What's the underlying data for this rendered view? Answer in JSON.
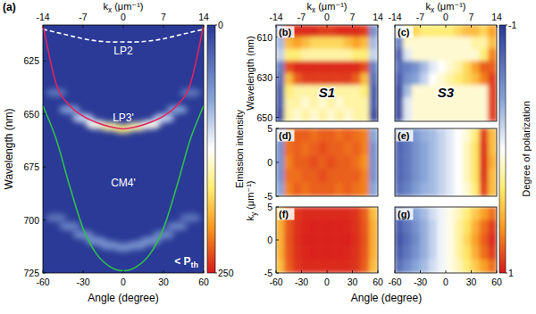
{
  "chart_data": [
    {
      "type": "line",
      "title": "(a)",
      "xlabel": "Angle (degree)",
      "ylabel": "Wavelength (nm)",
      "x2label": "kx (μm⁻¹)",
      "xlim": [
        -60,
        60
      ],
      "xticks": [
        -60,
        -30,
        0,
        30,
        60
      ],
      "x2lim": [
        -14,
        14
      ],
      "x2ticks": [
        -14,
        -7,
        0,
        7,
        14
      ],
      "ylim": [
        608,
        725
      ],
      "yticks": [
        625,
        650,
        675,
        700,
        725
      ],
      "x": [
        -60,
        -50,
        -40,
        -30,
        -20,
        -10,
        0,
        10,
        20,
        30,
        40,
        50,
        60
      ],
      "series": [
        {
          "name": "LP2",
          "color": "#ffffff",
          "line_style": "dashed",
          "values": [
            610,
            611.5,
            613,
            614.5,
            615.5,
            616,
            616,
            616,
            615.5,
            614.5,
            613,
            611.5,
            610
          ]
        },
        {
          "name": "LP3'",
          "color": "#e0245e",
          "values": [
            608,
            636,
            646,
            651,
            654,
            656,
            657,
            656,
            654,
            651,
            646,
            636,
            608
          ]
        },
        {
          "name": "CM4'",
          "color": "#2fbf4a",
          "values": [
            646,
            662,
            684,
            704,
            716,
            722,
            724,
            722,
            716,
            704,
            684,
            662,
            646
          ]
        }
      ],
      "emission": [
        {
          "x": [
            -50,
            -40,
            -30,
            -20,
            -10,
            0,
            10,
            20,
            30,
            40,
            50
          ],
          "values": [
            640,
            648,
            652,
            655,
            656,
            657,
            656,
            655,
            652,
            648,
            640
          ],
          "intensity": [
            40,
            70,
            100,
            130,
            150,
            160,
            150,
            130,
            100,
            70,
            40
          ]
        },
        {
          "x": [
            -50,
            -40,
            -30,
            -20,
            -10,
            0,
            10,
            20,
            30,
            40,
            50
          ],
          "values": [
            699,
            703,
            707,
            710,
            712,
            713,
            712,
            710,
            707,
            703,
            699
          ],
          "intensity": [
            40,
            50,
            55,
            60,
            60,
            60,
            60,
            60,
            55,
            50,
            40
          ]
        }
      ],
      "colorbar": {
        "label": "Emission intensity",
        "range": [
          0,
          250
        ],
        "ticks": [
          0,
          250
        ]
      },
      "annotation": "< Pth"
    },
    {
      "type": "heatmap",
      "title": "(b)",
      "ylabel": "Wavelength (nm)",
      "x2label": "kx (μm⁻¹)",
      "xlim": [
        -60,
        60
      ],
      "x2lim": [
        -14,
        14
      ],
      "x2ticks": [
        -14,
        -7,
        0,
        7,
        14
      ],
      "ylim": [
        604,
        652
      ],
      "yticks": [
        610,
        630,
        650
      ],
      "x": [
        -55,
        -45,
        -35,
        -25,
        -15,
        -5,
        5,
        15,
        25,
        35,
        45,
        55
      ],
      "y": [
        607,
        613,
        619,
        625,
        631,
        637,
        643,
        649
      ],
      "cells": [
        [
          -0.5,
          0.9,
          0.95,
          0.95,
          0.95,
          0.9,
          0.9,
          0.95,
          0.95,
          0.95,
          0.9,
          -0.5
        ],
        [
          -0.3,
          0.5,
          0.6,
          0.5,
          0.4,
          0.4,
          0.4,
          0.4,
          0.5,
          0.6,
          0.5,
          -0.3
        ],
        [
          -0.2,
          0.3,
          0.3,
          0.2,
          0.2,
          0.2,
          0.2,
          0.2,
          0.2,
          0.3,
          0.3,
          -0.2
        ],
        [
          -0.6,
          0.85,
          0.95,
          0.95,
          0.95,
          0.95,
          0.95,
          0.95,
          0.95,
          0.95,
          0.85,
          -0.6
        ],
        [
          -0.7,
          0.5,
          0.8,
          0.9,
          0.9,
          0.9,
          0.9,
          0.9,
          0.9,
          0.8,
          0.5,
          -0.7
        ],
        [
          -0.8,
          0.3,
          0.2,
          0.2,
          0.2,
          0.2,
          0.2,
          0.2,
          0.2,
          0.2,
          0.3,
          -0.8
        ],
        [
          -0.8,
          0.2,
          0.2,
          0.1,
          0.2,
          0.1,
          0.2,
          0.1,
          0.2,
          0.2,
          0.2,
          -0.8
        ],
        [
          -0.9,
          0.2,
          0.1,
          0.2,
          0.1,
          0.2,
          0.1,
          0.2,
          0.1,
          0.2,
          0.2,
          -0.9
        ]
      ],
      "annotation": "S1"
    },
    {
      "type": "heatmap",
      "title": "(c)",
      "x2label": "kx (μm⁻¹)",
      "xlim": [
        -60,
        60
      ],
      "x2lim": [
        -14,
        14
      ],
      "x2ticks": [
        -14,
        -7,
        0,
        7,
        14
      ],
      "ylim": [
        604,
        652
      ],
      "x": [
        -55,
        -45,
        -35,
        -25,
        -15,
        -5,
        5,
        15,
        25,
        35,
        45,
        55
      ],
      "y": [
        607,
        613,
        619,
        625,
        631,
        637,
        643,
        649
      ],
      "cells": [
        [
          -0.3,
          0.3,
          0.4,
          0.3,
          0.3,
          0.3,
          0.3,
          0.4,
          0.5,
          0.5,
          0.4,
          0.6
        ],
        [
          -0.6,
          0.1,
          0.1,
          0.1,
          0.1,
          0.1,
          0.1,
          0.1,
          0.1,
          0.2,
          0.2,
          0.5
        ],
        [
          -0.8,
          -0.1,
          0.1,
          0.1,
          0.1,
          0.1,
          0.1,
          0.1,
          0.1,
          0.1,
          0.3,
          0.7
        ],
        [
          -0.7,
          -0.6,
          -0.5,
          -0.3,
          -0.1,
          0.0,
          0.1,
          0.2,
          0.4,
          0.6,
          0.8,
          0.8
        ],
        [
          -0.8,
          -0.5,
          -0.4,
          -0.2,
          0.0,
          0.1,
          0.2,
          0.3,
          0.4,
          0.5,
          0.7,
          0.9
        ],
        [
          -0.9,
          -0.3,
          0.1,
          0.1,
          0.1,
          0.1,
          0.1,
          0.1,
          0.1,
          0.1,
          0.1,
          0.9
        ],
        [
          -0.9,
          -0.1,
          0.1,
          0.1,
          0.1,
          0.1,
          0.1,
          0.1,
          0.1,
          0.1,
          0.1,
          0.9
        ],
        [
          -0.9,
          -0.1,
          0.1,
          0.1,
          0.1,
          0.1,
          0.1,
          0.1,
          0.1,
          0.1,
          0.1,
          0.9
        ]
      ],
      "colorbar": {
        "label": "Degree of polarization",
        "range": [
          -1,
          1
        ],
        "ticks": [
          -1,
          1
        ]
      },
      "annotation": "S3"
    },
    {
      "type": "heatmap",
      "title": "(d)",
      "ylabel": "ky (μm⁻¹)",
      "xlim": [
        -60,
        60
      ],
      "ylim": [
        5,
        -5
      ],
      "yticks": [
        -5,
        0,
        5
      ],
      "x": [
        -55,
        -45,
        -35,
        -25,
        -15,
        -5,
        5,
        15,
        25,
        35,
        45,
        55
      ],
      "y": [
        4,
        2,
        0,
        -2,
        -4
      ],
      "cells": [
        [
          -0.4,
          0.7,
          0.8,
          0.8,
          0.75,
          0.8,
          0.8,
          0.75,
          0.8,
          0.75,
          0.7,
          -0.4
        ],
        [
          -0.5,
          0.75,
          0.8,
          0.75,
          0.8,
          0.85,
          0.8,
          0.8,
          0.75,
          0.8,
          0.7,
          -0.5
        ],
        [
          -0.5,
          0.7,
          0.8,
          0.8,
          0.85,
          0.8,
          0.85,
          0.8,
          0.8,
          0.75,
          0.65,
          -0.5
        ],
        [
          -0.5,
          0.75,
          0.75,
          0.8,
          0.8,
          0.85,
          0.8,
          0.8,
          0.8,
          0.8,
          0.7,
          -0.5
        ],
        [
          -0.4,
          0.7,
          0.8,
          0.75,
          0.8,
          0.8,
          0.8,
          0.75,
          0.8,
          0.75,
          0.7,
          -0.4
        ]
      ]
    },
    {
      "type": "heatmap",
      "title": "(e)",
      "xlim": [
        -60,
        60
      ],
      "ylim": [
        5,
        -5
      ],
      "x": [
        -55,
        -45,
        -35,
        -25,
        -15,
        -5,
        5,
        15,
        25,
        35,
        45,
        55
      ],
      "y": [
        4,
        2,
        0,
        -2,
        -4
      ],
      "cells": [
        [
          -0.7,
          -0.6,
          -0.45,
          -0.35,
          -0.3,
          -0.2,
          -0.1,
          0.0,
          0.1,
          0.3,
          0.9,
          0.5
        ],
        [
          -0.75,
          -0.65,
          -0.5,
          -0.4,
          -0.3,
          -0.2,
          -0.1,
          0.0,
          0.15,
          0.35,
          0.95,
          0.5
        ],
        [
          -0.75,
          -0.65,
          -0.5,
          -0.4,
          -0.3,
          -0.2,
          -0.1,
          0.0,
          0.15,
          0.35,
          0.95,
          0.55
        ],
        [
          -0.75,
          -0.65,
          -0.5,
          -0.4,
          -0.3,
          -0.2,
          -0.1,
          0.0,
          0.15,
          0.35,
          0.95,
          0.5
        ],
        [
          -0.7,
          -0.6,
          -0.45,
          -0.35,
          -0.3,
          -0.2,
          -0.1,
          0.0,
          0.1,
          0.3,
          0.9,
          0.5
        ]
      ]
    },
    {
      "type": "heatmap",
      "title": "(f)",
      "xlabel": "Angle (degree)",
      "xlim": [
        -60,
        60
      ],
      "xticks": [
        -60,
        -30,
        0,
        30,
        60
      ],
      "ylim": [
        5,
        -5
      ],
      "yticks": [
        -5,
        0,
        5
      ],
      "x": [
        -55,
        -45,
        -35,
        -25,
        -15,
        -5,
        5,
        15,
        25,
        35,
        45,
        55
      ],
      "y": [
        4,
        2,
        0,
        -2,
        -4
      ],
      "cells": [
        [
          0.5,
          0.8,
          0.92,
          0.95,
          0.95,
          0.95,
          0.95,
          0.95,
          0.95,
          0.92,
          0.8,
          0.5
        ],
        [
          0.55,
          0.82,
          0.93,
          0.96,
          0.97,
          0.97,
          0.97,
          0.97,
          0.96,
          0.93,
          0.82,
          0.55
        ],
        [
          0.55,
          0.83,
          0.94,
          0.97,
          0.98,
          0.98,
          0.98,
          0.98,
          0.97,
          0.94,
          0.83,
          0.55
        ],
        [
          0.55,
          0.82,
          0.93,
          0.96,
          0.97,
          0.97,
          0.97,
          0.97,
          0.96,
          0.93,
          0.82,
          0.55
        ],
        [
          0.5,
          0.8,
          0.92,
          0.95,
          0.95,
          0.95,
          0.95,
          0.95,
          0.95,
          0.92,
          0.8,
          0.5
        ]
      ]
    },
    {
      "type": "heatmap",
      "title": "(g)",
      "xlim": [
        -60,
        60
      ],
      "xticks": [
        -60,
        -30,
        0,
        30,
        60
      ],
      "ylim": [
        5,
        -5
      ],
      "x": [
        -55,
        -45,
        -35,
        -25,
        -15,
        -5,
        5,
        15,
        25,
        35,
        45,
        55
      ],
      "y": [
        4,
        2,
        0,
        -2,
        -4
      ],
      "cells": [
        [
          -0.7,
          -0.55,
          -0.4,
          -0.3,
          -0.15,
          -0.05,
          0.05,
          0.15,
          0.3,
          0.45,
          0.6,
          0.75
        ],
        [
          -0.8,
          -0.65,
          -0.5,
          -0.35,
          -0.2,
          -0.05,
          0.05,
          0.2,
          0.35,
          0.55,
          0.75,
          0.9
        ],
        [
          -0.85,
          -0.7,
          -0.55,
          -0.35,
          -0.2,
          -0.05,
          0.05,
          0.2,
          0.4,
          0.6,
          0.8,
          0.95
        ],
        [
          -0.8,
          -0.65,
          -0.5,
          -0.35,
          -0.2,
          -0.05,
          0.05,
          0.2,
          0.35,
          0.55,
          0.75,
          0.9
        ],
        [
          -0.7,
          -0.55,
          -0.4,
          -0.3,
          -0.15,
          -0.05,
          0.05,
          0.15,
          0.3,
          0.45,
          0.6,
          0.75
        ]
      ]
    }
  ]
}
